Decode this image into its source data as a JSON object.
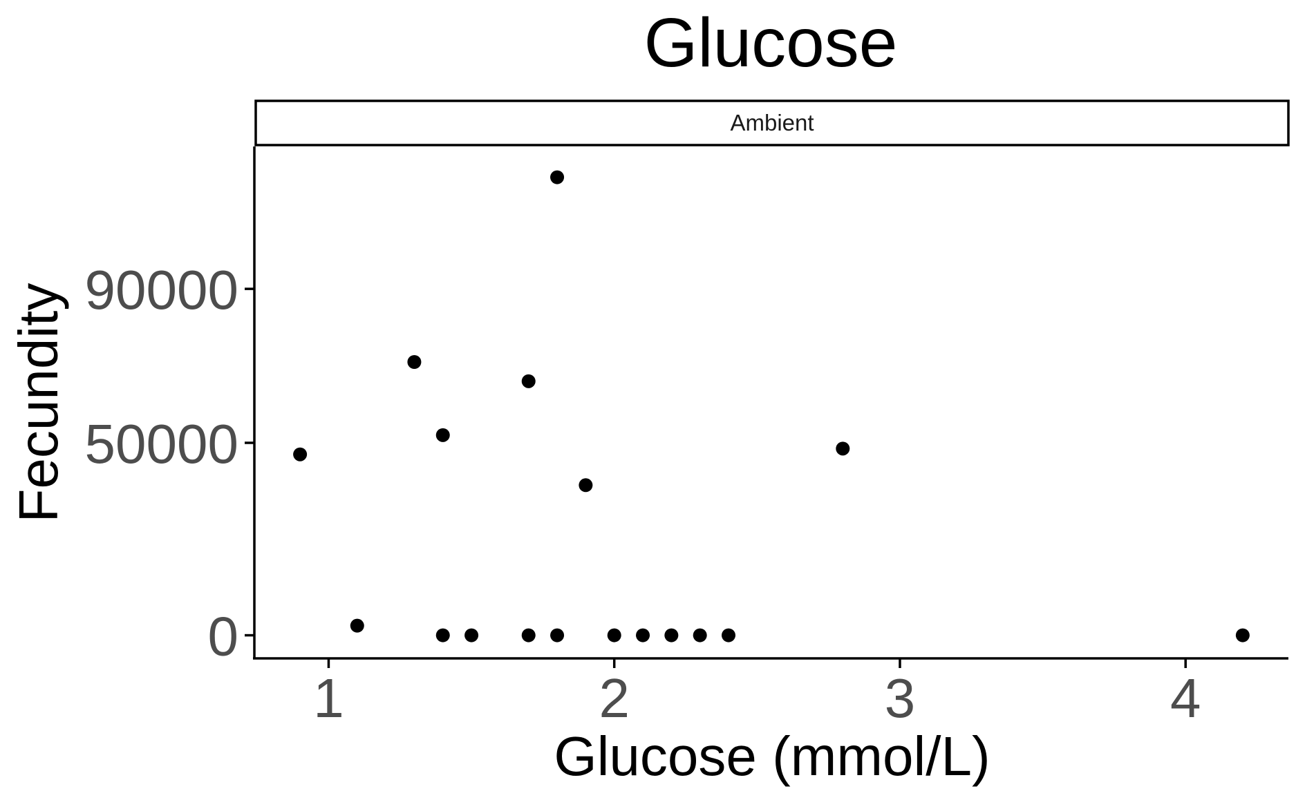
{
  "chart_data": {
    "type": "scatter",
    "title": "Glucose",
    "facet_label": "Ambient",
    "xlabel": "Glucose (mmol/L)",
    "ylabel": "Fecundity",
    "xlim": [
      0.74,
      4.36
    ],
    "ylim": [
      -6000,
      127000
    ],
    "x_ticks": [
      1,
      2,
      3,
      4
    ],
    "y_ticks": [
      0,
      50000,
      90000
    ],
    "grid": false,
    "legend": "none",
    "point_color": "#000000",
    "series": [
      {
        "x": [
          0.9,
          1.1,
          1.3,
          1.4,
          1.4,
          1.5,
          1.7,
          1.7,
          1.8,
          1.8,
          1.9,
          2.0,
          2.1,
          2.2,
          2.3,
          2.4,
          2.8,
          4.2
        ],
        "y": [
          47000,
          2500,
          71000,
          52000,
          0,
          0,
          66000,
          0,
          119000,
          0,
          39000,
          0,
          0,
          0,
          0,
          0,
          48500,
          0
        ]
      }
    ]
  }
}
